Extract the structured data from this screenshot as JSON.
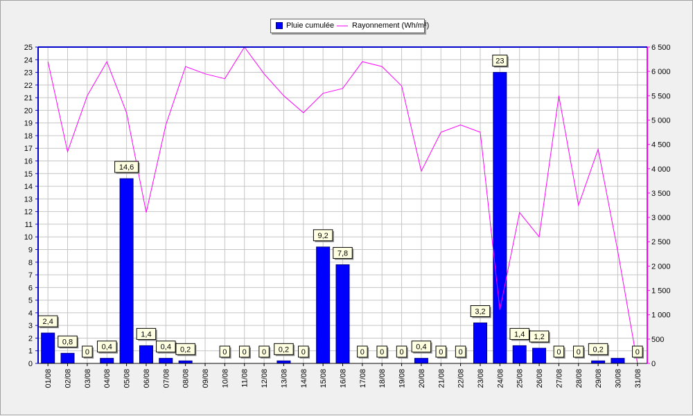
{
  "chart_data": {
    "type": "bar",
    "title": "",
    "xlabel": "",
    "categories": [
      "01/08",
      "02/08",
      "03/08",
      "04/08",
      "05/08",
      "06/08",
      "07/08",
      "08/08",
      "09/08",
      "10/08",
      "11/08",
      "12/08",
      "13/08",
      "14/08",
      "15/08",
      "16/08",
      "17/08",
      "18/08",
      "19/08",
      "20/08",
      "21/08",
      "22/08",
      "23/08",
      "24/08",
      "25/08",
      "26/08",
      "27/08",
      "28/08",
      "29/08",
      "30/08",
      "31/08"
    ],
    "series": [
      {
        "name": "Pluie cumulée",
        "type": "bar",
        "axis": "left",
        "color": "#0000ff",
        "values": [
          2.4,
          0.8,
          0,
          0.4,
          14.6,
          1.4,
          0.4,
          0.2,
          0,
          0,
          0,
          0,
          0.2,
          0,
          9.2,
          7.8,
          0,
          0,
          0,
          0.4,
          0,
          0,
          3.2,
          23,
          1.4,
          1.2,
          0,
          0,
          0.2,
          0.4,
          0
        ],
        "data_labels": [
          "2,4",
          "0,8",
          "0",
          "0,4",
          "14,6",
          "1,4",
          "0,4",
          "0,2",
          null,
          "0",
          "0",
          "0",
          "0,2",
          "0",
          "9,2",
          "7,8",
          "0",
          "0",
          "0",
          "0,4",
          "0",
          "0",
          "3,2",
          "23",
          "1,4",
          "1,2",
          "0",
          "0",
          "0,2",
          null,
          "0"
        ]
      },
      {
        "name": "Rayonnement (Wh/m²)",
        "type": "line",
        "axis": "right",
        "color": "#ff00ff",
        "values": [
          6200,
          4350,
          5500,
          6200,
          5150,
          3100,
          4900,
          6100,
          5950,
          5850,
          6500,
          5950,
          5500,
          5150,
          5550,
          5650,
          6200,
          6100,
          5700,
          3950,
          4750,
          4900,
          4750,
          1100,
          3100,
          2600,
          5500,
          3250,
          4400,
          2300,
          0
        ]
      }
    ],
    "y_left": {
      "range": [
        0,
        25
      ],
      "ticks": [
        "0",
        "1",
        "2",
        "3",
        "4",
        "5",
        "6",
        "7",
        "8",
        "9",
        "10",
        "11",
        "12",
        "13",
        "14",
        "15",
        "16",
        "17",
        "18",
        "19",
        "20",
        "21",
        "22",
        "23",
        "24",
        "25"
      ]
    },
    "y_right": {
      "range": [
        0,
        6500
      ],
      "ticks": [
        "0",
        "500",
        "1 000",
        "1 500",
        "2 000",
        "2 500",
        "3 000",
        "3 500",
        "4 000",
        "4 500",
        "5 000",
        "5 500",
        "6 000",
        "6 500"
      ]
    },
    "grid": true,
    "legend": "top-center"
  }
}
